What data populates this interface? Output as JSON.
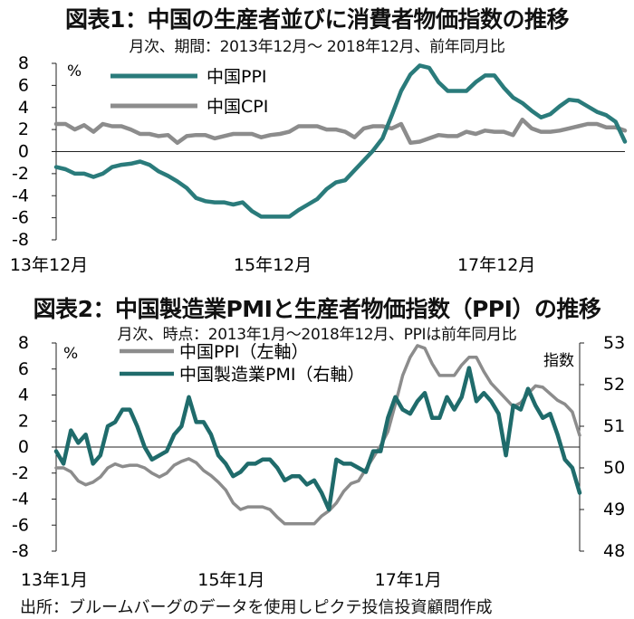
{
  "chart_data": [
    {
      "type": "line",
      "title": "図表1：中国の生産者並びに消費者物価指数の推移",
      "subtitle": "月次、期間：2013年12月～ 2018年12月、前年同月比",
      "unit_label": "%",
      "ylim": [
        -8,
        8
      ],
      "y_ticks": [
        "8",
        "6",
        "4",
        "2",
        "0",
        "-2",
        "-4",
        "-6",
        "-8"
      ],
      "x_tick_labels": [
        "13年12月",
        "15年12月",
        "17年12月"
      ],
      "x_tick_positions": [
        0,
        24,
        48
      ],
      "legend_placement": "top-left",
      "grid": false,
      "series": [
        {
          "name": "中国PPI",
          "color": "#2a7b7b",
          "values": [
            -1.4,
            -1.6,
            -2.0,
            -2.0,
            -2.3,
            -2.0,
            -1.4,
            -1.2,
            -1.1,
            -0.9,
            -1.2,
            -1.8,
            -2.2,
            -2.7,
            -3.3,
            -4.2,
            -4.5,
            -4.6,
            -4.6,
            -4.8,
            -4.6,
            -5.4,
            -5.9,
            -5.9,
            -5.9,
            -5.9,
            -5.3,
            -4.8,
            -4.3,
            -3.4,
            -2.8,
            -2.6,
            -1.7,
            -0.8,
            0.1,
            1.2,
            3.3,
            5.5,
            7.0,
            7.8,
            7.6,
            6.3,
            5.5,
            5.5,
            5.5,
            6.3,
            6.9,
            6.9,
            5.8,
            4.9,
            4.4,
            3.7,
            3.1,
            3.4,
            4.1,
            4.7,
            4.6,
            4.1,
            3.6,
            3.3,
            2.7,
            0.9
          ]
        },
        {
          "name": "中国CPI",
          "color": "#8c8c8c",
          "values": [
            2.5,
            2.5,
            2.0,
            2.4,
            1.8,
            2.5,
            2.3,
            2.3,
            2.0,
            1.6,
            1.6,
            1.4,
            1.5,
            0.8,
            1.4,
            1.5,
            1.5,
            1.2,
            1.4,
            1.6,
            1.6,
            1.6,
            1.3,
            1.5,
            1.6,
            1.8,
            2.3,
            2.3,
            2.3,
            2.0,
            2.0,
            1.8,
            1.3,
            2.1,
            2.3,
            2.3,
            2.1,
            2.5,
            0.8,
            0.9,
            1.2,
            1.5,
            1.4,
            1.4,
            1.8,
            1.6,
            1.9,
            1.8,
            1.8,
            1.5,
            2.9,
            2.1,
            1.8,
            1.8,
            1.9,
            2.1,
            2.3,
            2.5,
            2.5,
            2.2,
            2.2,
            1.9
          ]
        }
      ]
    },
    {
      "type": "line",
      "title": "図表2：中国製造業PMIと生産者物価指数（PPI）の推移",
      "subtitle": "月次、時点：2013年1月～2018年12月、PPIは前年同月比",
      "unit_label_left": "%",
      "unit_label_right": "指数",
      "ylim_left": [
        -8,
        8
      ],
      "ylim_right": [
        48,
        53
      ],
      "y_ticks_left": [
        "8",
        "6",
        "4",
        "2",
        "0",
        "-2",
        "-4",
        "-6",
        "-8"
      ],
      "y_ticks_right": [
        "53",
        "52",
        "51",
        "50",
        "49",
        "48"
      ],
      "x_tick_labels": [
        "13年1月",
        "15年1月",
        "17年1月"
      ],
      "x_tick_positions": [
        0,
        24,
        48
      ],
      "legend_placement": "top-center",
      "grid": false,
      "series": [
        {
          "name": "中国PPI（左軸）",
          "axis": "left",
          "color": "#8c8c8c",
          "values": [
            -1.6,
            -1.6,
            -1.9,
            -2.6,
            -2.9,
            -2.7,
            -2.3,
            -1.6,
            -1.3,
            -1.5,
            -1.4,
            -1.4,
            -1.6,
            -2.0,
            -2.3,
            -2.0,
            -1.4,
            -1.1,
            -0.9,
            -1.2,
            -1.8,
            -2.2,
            -2.7,
            -3.3,
            -4.3,
            -4.8,
            -4.6,
            -4.6,
            -4.6,
            -4.8,
            -5.4,
            -5.9,
            -5.9,
            -5.9,
            -5.9,
            -5.9,
            -5.3,
            -4.9,
            -4.3,
            -3.4,
            -2.8,
            -2.6,
            -1.7,
            -0.8,
            0.1,
            1.2,
            3.3,
            5.5,
            6.9,
            7.8,
            7.6,
            6.4,
            5.5,
            5.5,
            5.5,
            6.3,
            6.9,
            6.9,
            5.8,
            4.9,
            4.3,
            3.7,
            3.1,
            3.4,
            4.1,
            4.7,
            4.6,
            4.1,
            3.6,
            3.3,
            2.7,
            0.9
          ]
        },
        {
          "name": "中国製造業PMI（右軸）",
          "axis": "right",
          "color": "#1f6b6b",
          "values": [
            50.4,
            50.1,
            50.9,
            50.6,
            50.8,
            50.1,
            50.3,
            51.0,
            51.1,
            51.4,
            51.4,
            51.0,
            50.5,
            50.2,
            50.3,
            50.4,
            50.8,
            51.0,
            51.7,
            51.1,
            51.1,
            50.8,
            50.3,
            50.1,
            49.8,
            49.9,
            50.1,
            50.1,
            50.2,
            50.2,
            50.0,
            49.7,
            49.8,
            49.8,
            49.6,
            49.7,
            49.4,
            49.0,
            50.2,
            50.1,
            50.1,
            50.0,
            49.9,
            50.4,
            50.4,
            51.2,
            51.7,
            51.4,
            51.3,
            51.6,
            51.8,
            51.2,
            51.2,
            51.7,
            51.4,
            51.7,
            52.4,
            51.6,
            51.8,
            51.6,
            51.3,
            50.3,
            51.5,
            51.4,
            51.9,
            51.5,
            51.2,
            51.3,
            50.8,
            50.2,
            50.0,
            49.4
          ]
        }
      ]
    }
  ],
  "source": "出所：ブルームバーグのデータを使用しピクテ投信投資顧問作成"
}
